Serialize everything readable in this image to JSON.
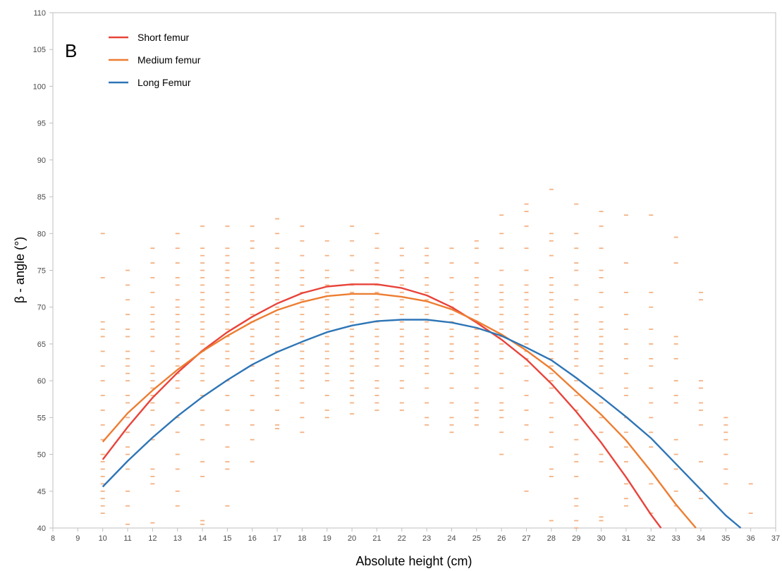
{
  "chart_data": {
    "type": "scatter",
    "panel_label": "B",
    "title": "",
    "xlabel": "Absolute height (cm)",
    "ylabel": "β - angle (°)",
    "xlim": [
      8,
      37
    ],
    "ylim": [
      40,
      110
    ],
    "x_ticks": [
      "8",
      "9",
      "10",
      "11",
      "12",
      "13",
      "14",
      "15",
      "16",
      "17",
      "18",
      "19",
      "20",
      "21",
      "22",
      "23",
      "24",
      "25",
      "26",
      "27",
      "28",
      "29",
      "30",
      "31",
      "32",
      "33",
      "34",
      "35",
      "36",
      "37"
    ],
    "y_ticks": [
      "40",
      "45",
      "50",
      "55",
      "60",
      "65",
      "70",
      "75",
      "80",
      "85",
      "90",
      "95",
      "100",
      "105",
      "110"
    ],
    "grid": false,
    "legend_position": "top-left",
    "scatter_color": "#F4B183",
    "scatter_columns": [
      {
        "x": 10,
        "y": [
          42,
          43,
          44,
          45,
          46,
          47,
          48,
          49,
          50,
          52,
          54,
          56,
          58,
          60,
          62,
          64,
          66,
          67,
          68,
          74,
          80
        ]
      },
      {
        "x": 11,
        "y": [
          40.5,
          43,
          45,
          48,
          50,
          51,
          53,
          55,
          57,
          58,
          60,
          61,
          62,
          63,
          64,
          66,
          67,
          69,
          71,
          73,
          75
        ]
      },
      {
        "x": 12,
        "y": [
          40.7,
          46,
          47,
          48,
          52,
          54,
          56,
          57,
          58,
          59,
          60,
          61,
          62,
          64,
          66,
          67,
          68,
          69,
          70,
          72,
          74,
          76,
          78
        ]
      },
      {
        "x": 13,
        "y": [
          43,
          45,
          48,
          50,
          53,
          55,
          57,
          59,
          60,
          61,
          62,
          63,
          64,
          65,
          66,
          67,
          68,
          69,
          70,
          71,
          73,
          74,
          76,
          78,
          80
        ]
      },
      {
        "x": 14,
        "y": [
          40.5,
          41,
          47,
          49,
          52,
          54,
          56,
          58,
          60,
          61,
          62,
          63,
          64,
          65,
          66,
          67,
          68,
          69,
          70,
          71,
          72,
          73,
          74,
          75,
          76,
          77,
          78,
          81
        ]
      },
      {
        "x": 15,
        "y": [
          43,
          48,
          49,
          51,
          54,
          56,
          58,
          60,
          62,
          63,
          64,
          65,
          66,
          67,
          68,
          69,
          70,
          71,
          72,
          73,
          74,
          75,
          76,
          77,
          78,
          81
        ]
      },
      {
        "x": 16,
        "y": [
          49,
          52,
          54,
          56,
          58,
          60,
          62,
          63,
          64,
          65,
          66,
          67,
          68,
          69,
          70,
          71,
          72,
          73,
          74,
          75,
          76,
          78,
          79,
          81
        ]
      },
      {
        "x": 17,
        "y": [
          53.5,
          54,
          56,
          58,
          59,
          60,
          61,
          62,
          63,
          64,
          65,
          66,
          67,
          68,
          69,
          70,
          71,
          72,
          73,
          74,
          75,
          76,
          78,
          80,
          82
        ]
      },
      {
        "x": 18,
        "y": [
          53,
          55,
          57,
          59,
          60,
          61,
          62,
          63,
          64,
          65,
          66,
          67,
          68,
          69,
          70,
          71,
          72,
          73,
          74,
          75,
          77,
          79,
          81
        ]
      },
      {
        "x": 19,
        "y": [
          55,
          56,
          58,
          60,
          61,
          62,
          63,
          64,
          65,
          66,
          67,
          68,
          69,
          70,
          71,
          72,
          73,
          74,
          75,
          77,
          79
        ]
      },
      {
        "x": 20,
        "y": [
          55.5,
          57,
          58,
          59,
          60,
          61,
          62,
          63,
          64,
          65,
          66,
          67,
          68,
          69,
          70,
          71,
          72,
          73,
          75,
          77,
          79,
          81
        ]
      },
      {
        "x": 21,
        "y": [
          56,
          57,
          58,
          59,
          60,
          62,
          63,
          64,
          65,
          66,
          67,
          68,
          69,
          70,
          71,
          72,
          73,
          74,
          75,
          76,
          78,
          80
        ]
      },
      {
        "x": 22,
        "y": [
          56,
          57,
          59,
          60,
          62,
          63,
          64,
          65,
          66,
          67,
          68,
          69,
          70,
          71,
          72,
          73,
          74,
          75,
          77,
          78
        ]
      },
      {
        "x": 23,
        "y": [
          54,
          55,
          57,
          59,
          61,
          62,
          63,
          64,
          65,
          66,
          67,
          68,
          69,
          70,
          71,
          72,
          73,
          74,
          76,
          77,
          78
        ]
      },
      {
        "x": 24,
        "y": [
          53,
          54,
          55,
          57,
          59,
          61,
          63,
          64,
          65,
          66,
          67,
          68,
          69,
          70,
          71,
          72,
          74,
          76,
          78
        ]
      },
      {
        "x": 25,
        "y": [
          54,
          55,
          56,
          57,
          59,
          61,
          62,
          63,
          64,
          65,
          66,
          67,
          68,
          69,
          70,
          71,
          72,
          73,
          74,
          76,
          78,
          79
        ]
      },
      {
        "x": 26,
        "y": [
          50,
          53,
          55,
          56,
          57,
          59,
          61,
          63,
          64,
          65,
          66,
          67,
          68,
          69,
          70,
          71,
          72,
          73,
          75,
          78,
          80,
          82.5
        ]
      },
      {
        "x": 27,
        "y": [
          45,
          52,
          54,
          56,
          58,
          60,
          62,
          63,
          64,
          65,
          66,
          67,
          68,
          69,
          70,
          71,
          72,
          73,
          75,
          78,
          81,
          83,
          84
        ]
      },
      {
        "x": 28,
        "y": [
          41,
          47,
          48,
          51,
          53,
          55,
          57,
          59,
          60,
          61,
          62,
          63,
          64,
          65,
          66,
          67,
          68,
          69,
          70,
          71,
          72,
          73,
          74,
          77,
          79,
          80,
          86
        ]
      },
      {
        "x": 29,
        "y": [
          40,
          41,
          43,
          44,
          47,
          49,
          50,
          52,
          54,
          56,
          58,
          60,
          62,
          63,
          64,
          65,
          66,
          67,
          68,
          69,
          71,
          73,
          75,
          76,
          78,
          80,
          84
        ]
      },
      {
        "x": 30,
        "y": [
          41,
          41.5,
          49,
          50,
          53,
          55,
          57,
          59,
          61,
          62,
          63,
          64,
          65,
          66,
          67,
          68,
          70,
          72,
          74,
          75,
          78,
          81,
          83
        ]
      },
      {
        "x": 31,
        "y": [
          43,
          44,
          46,
          49,
          51,
          53,
          55,
          58,
          59,
          61,
          63,
          65,
          67,
          69,
          72,
          76,
          82.5
        ]
      },
      {
        "x": 32,
        "y": [
          42,
          46,
          51,
          53,
          55,
          57,
          59,
          62,
          63,
          65,
          67,
          70,
          72,
          82.5
        ]
      },
      {
        "x": 33,
        "y": [
          43,
          45,
          48,
          50,
          52,
          57,
          58,
          60,
          63,
          65,
          66,
          76,
          79.5
        ]
      },
      {
        "x": 34,
        "y": [
          44,
          45,
          49,
          54,
          56,
          57,
          59,
          60,
          71,
          72
        ]
      },
      {
        "x": 35,
        "y": [
          46,
          48,
          50,
          52,
          53,
          54,
          55
        ]
      },
      {
        "x": 36,
        "y": [
          42,
          46
        ]
      }
    ],
    "series": [
      {
        "name": "Short femur",
        "color": "#E8433A",
        "x": [
          10,
          11,
          12,
          13,
          14,
          15,
          16,
          17,
          18,
          19,
          20,
          21,
          22,
          23,
          24,
          25,
          26,
          27,
          28,
          29,
          30,
          31,
          32,
          32.4
        ],
        "y": [
          49.3,
          53.7,
          57.7,
          61.1,
          64.1,
          66.6,
          68.7,
          70.5,
          71.9,
          72.8,
          73.1,
          73.1,
          72.6,
          71.6,
          70.0,
          67.9,
          65.6,
          62.9,
          59.6,
          55.8,
          51.6,
          46.9,
          41.8,
          40.0
        ]
      },
      {
        "name": "Medium femur",
        "color": "#ED7D31",
        "x": [
          10,
          11,
          12,
          13,
          14,
          15,
          16,
          17,
          18,
          19,
          20,
          21,
          22,
          23,
          24,
          25,
          26,
          27,
          28,
          29,
          30,
          31,
          32,
          33,
          33.8
        ],
        "y": [
          51.7,
          55.6,
          58.7,
          61.5,
          64.0,
          66.1,
          68.0,
          69.6,
          70.7,
          71.5,
          71.8,
          71.8,
          71.4,
          70.8,
          69.7,
          68.1,
          66.3,
          64.1,
          61.6,
          58.5,
          55.4,
          51.9,
          47.7,
          43.2,
          40.0
        ]
      },
      {
        "name": "Long Femur",
        "color": "#2E75B6",
        "x": [
          10,
          11,
          12,
          13,
          14,
          15,
          16,
          17,
          18,
          19,
          20,
          21,
          22,
          23,
          24,
          25,
          26,
          27,
          28,
          29,
          30,
          31,
          32,
          33,
          34,
          35,
          35.6
        ],
        "y": [
          45.6,
          49.1,
          52.3,
          55.2,
          57.8,
          60.1,
          62.2,
          63.9,
          65.3,
          66.6,
          67.5,
          68.1,
          68.3,
          68.3,
          67.9,
          67.2,
          66.1,
          64.5,
          62.8,
          60.4,
          57.8,
          55.1,
          52.2,
          48.7,
          45.2,
          41.7,
          40.0
        ]
      }
    ]
  }
}
